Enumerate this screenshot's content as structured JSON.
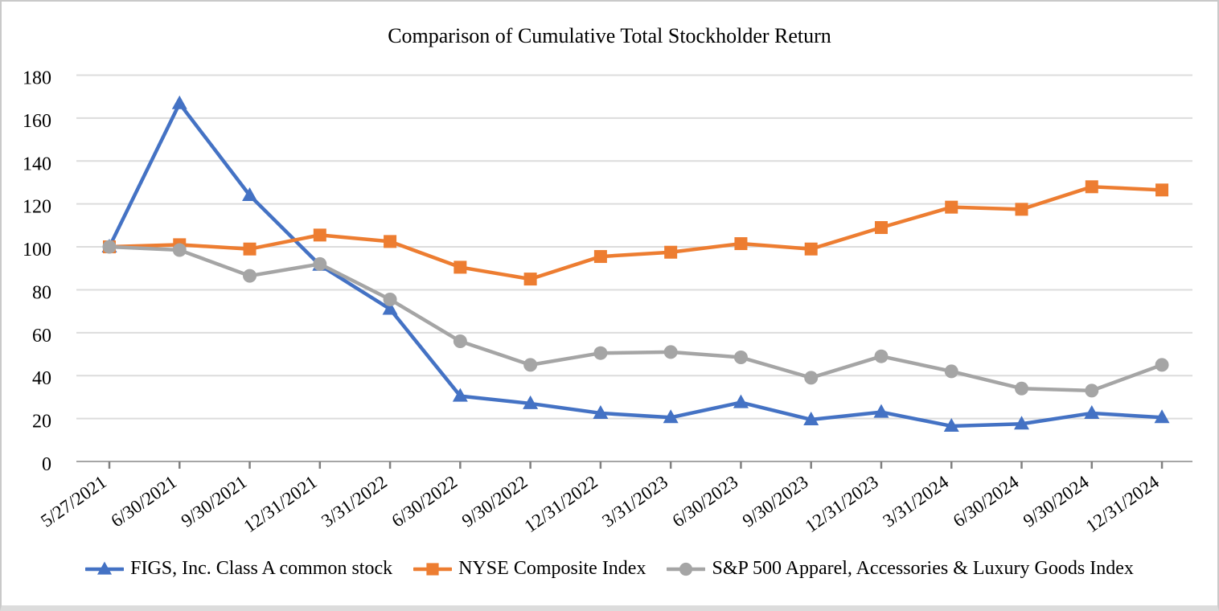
{
  "page": {
    "background": "#ffffff",
    "border_color": "#c9c9c9"
  },
  "chart_data": {
    "type": "line",
    "title": "Comparison of Cumulative Total Stockholder Return",
    "categories": [
      "5/27/2021",
      "6/30/2021",
      "9/30/2021",
      "12/31/2021",
      "3/31/2022",
      "6/30/2022",
      "9/30/2022",
      "12/31/2022",
      "3/31/2023",
      "6/30/2023",
      "9/30/2023",
      "12/31/2023",
      "3/31/2024",
      "6/30/2024",
      "9/30/2024",
      "12/31/2024"
    ],
    "series": [
      {
        "name": "FIGS, Inc. Class A common stock",
        "marker": "triangle",
        "color": "#4472C4",
        "values": [
          100,
          166.8,
          124,
          91.5,
          71,
          30.5,
          27,
          22.5,
          20.5,
          27.5,
          19.5,
          23,
          16.5,
          17.5,
          22.5,
          20.5
        ]
      },
      {
        "name": "NYSE Composite Index",
        "marker": "square",
        "color": "#ED7D31",
        "values": [
          100,
          101,
          99,
          105.5,
          102.5,
          90.5,
          85,
          95.5,
          97.5,
          101.5,
          99,
          109,
          118.5,
          117.5,
          128,
          126.5
        ]
      },
      {
        "name": "S&P 500 Apparel, Accessories & Luxury Goods Index",
        "marker": "circle",
        "color": "#A5A5A5",
        "values": [
          100,
          98.5,
          86.5,
          92,
          75.5,
          56,
          45,
          50.5,
          51,
          48.5,
          39,
          49,
          42,
          34,
          33,
          45
        ]
      }
    ],
    "y_axis": {
      "min": 0,
      "max": 180,
      "step": 20,
      "ticks": [
        0,
        20,
        40,
        60,
        80,
        100,
        120,
        140,
        160,
        180
      ]
    },
    "x_axis": {
      "label_rotation_deg": -35
    },
    "grid": true,
    "legend_position": "bottom",
    "style": {
      "gridline_color": "#dcdcdc",
      "axis_line_color": "#a6a6a6",
      "tick_color": "#808080",
      "text_color": "#000000"
    }
  }
}
